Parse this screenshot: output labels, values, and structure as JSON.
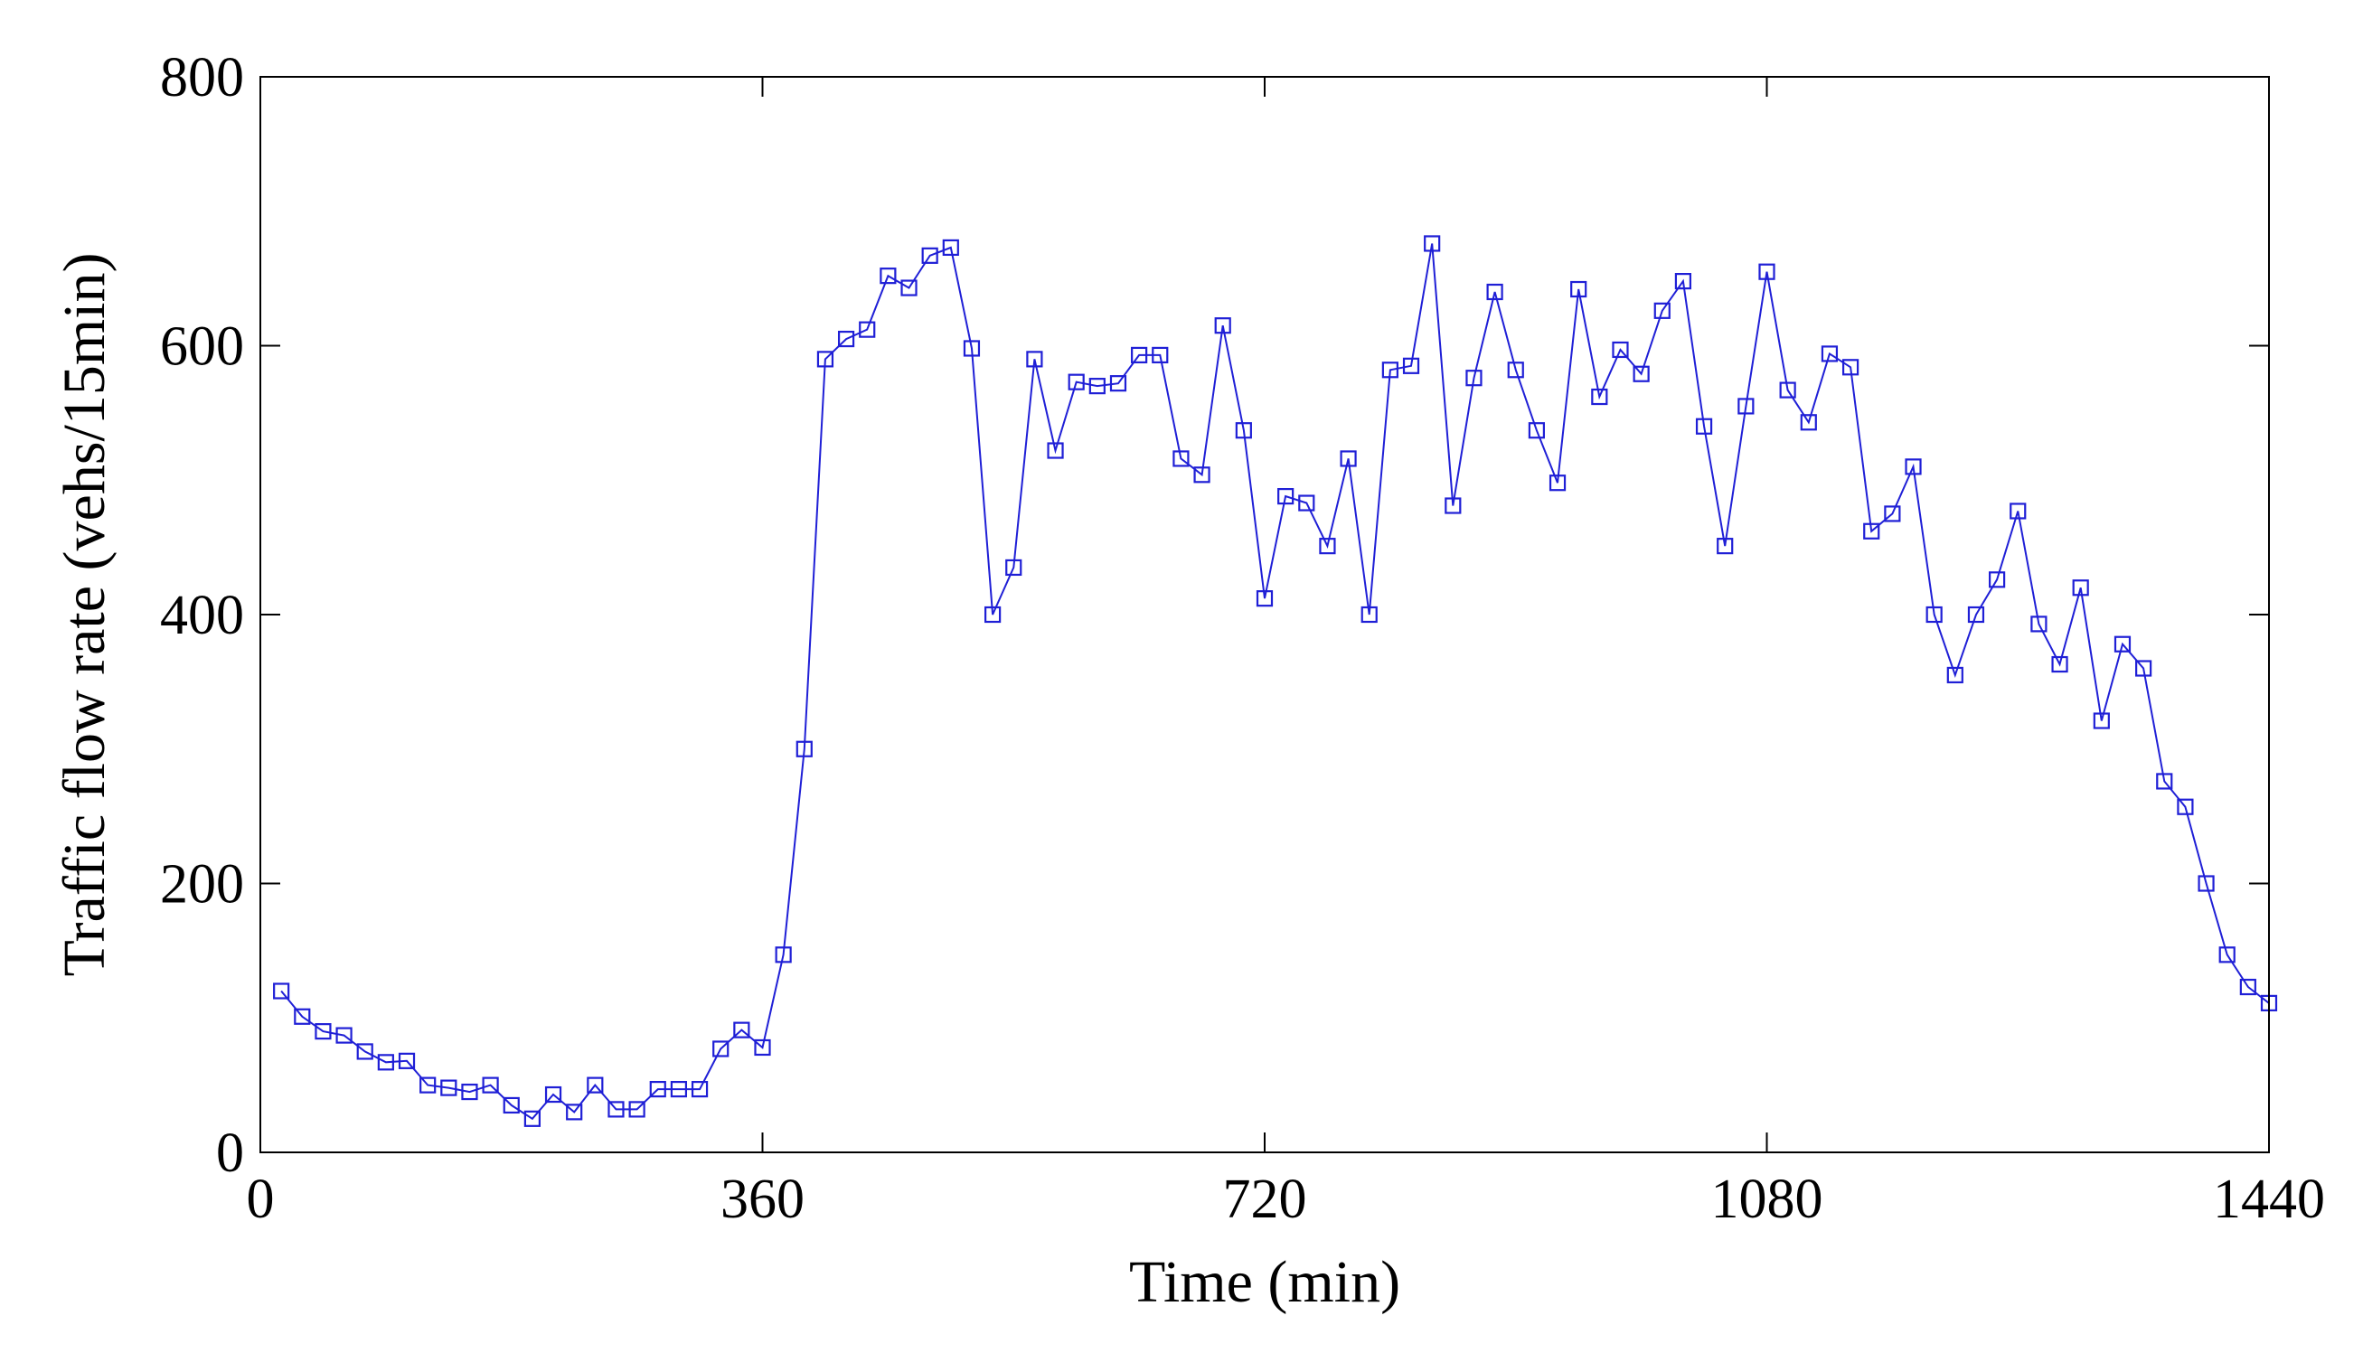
{
  "chart_data": {
    "type": "line",
    "title": "",
    "xlabel": "Time (min)",
    "ylabel": "Traffic flow rate (vehs/15min)",
    "xlim": [
      0,
      1440
    ],
    "ylim": [
      0,
      800
    ],
    "xticks": [
      0,
      360,
      720,
      1080,
      1440
    ],
    "yticks": [
      0,
      200,
      400,
      600,
      800
    ],
    "xtick_labels": [
      "0",
      "360",
      "720",
      "1080",
      "1440"
    ],
    "ytick_labels": [
      "0",
      "200",
      "400",
      "600",
      "800"
    ],
    "grid": false,
    "legend": "none",
    "marker": "square",
    "series": [
      {
        "color": "#1f1fd6",
        "x": [
          15,
          30,
          45,
          60,
          75,
          90,
          105,
          120,
          135,
          150,
          165,
          180,
          195,
          210,
          225,
          240,
          255,
          270,
          285,
          300,
          315,
          330,
          345,
          360,
          375,
          390,
          405,
          420,
          435,
          450,
          465,
          480,
          495,
          510,
          525,
          540,
          555,
          570,
          585,
          600,
          615,
          630,
          645,
          660,
          675,
          690,
          705,
          720,
          735,
          750,
          765,
          780,
          795,
          810,
          825,
          840,
          855,
          870,
          885,
          900,
          915,
          930,
          945,
          960,
          975,
          990,
          1005,
          1020,
          1035,
          1050,
          1065,
          1080,
          1095,
          1110,
          1125,
          1140,
          1155,
          1170,
          1185,
          1200,
          1215,
          1230,
          1245,
          1260,
          1275,
          1290,
          1305,
          1320,
          1335,
          1350,
          1365,
          1380,
          1395,
          1410,
          1425,
          1440
        ],
        "values": [
          120,
          101,
          90,
          87,
          75,
          67,
          68,
          50,
          48,
          45,
          50,
          35,
          25,
          43,
          30,
          50,
          32,
          32,
          47,
          47,
          47,
          77,
          91,
          78,
          147,
          300,
          590,
          605,
          612,
          652,
          643,
          667,
          673,
          598,
          400,
          435,
          590,
          522,
          573,
          570,
          572,
          593,
          593,
          516,
          504,
          615,
          537,
          412,
          488,
          483,
          451,
          516,
          400,
          582,
          585,
          676,
          481,
          576,
          640,
          582,
          537,
          498,
          642,
          562,
          597,
          579,
          626,
          648,
          540,
          451,
          555,
          655,
          567,
          543,
          594,
          584,
          462,
          475,
          510,
          400,
          355,
          400,
          426,
          477,
          393,
          363,
          420,
          321,
          378,
          360,
          276,
          257,
          200,
          147,
          123,
          111
        ]
      }
    ]
  }
}
